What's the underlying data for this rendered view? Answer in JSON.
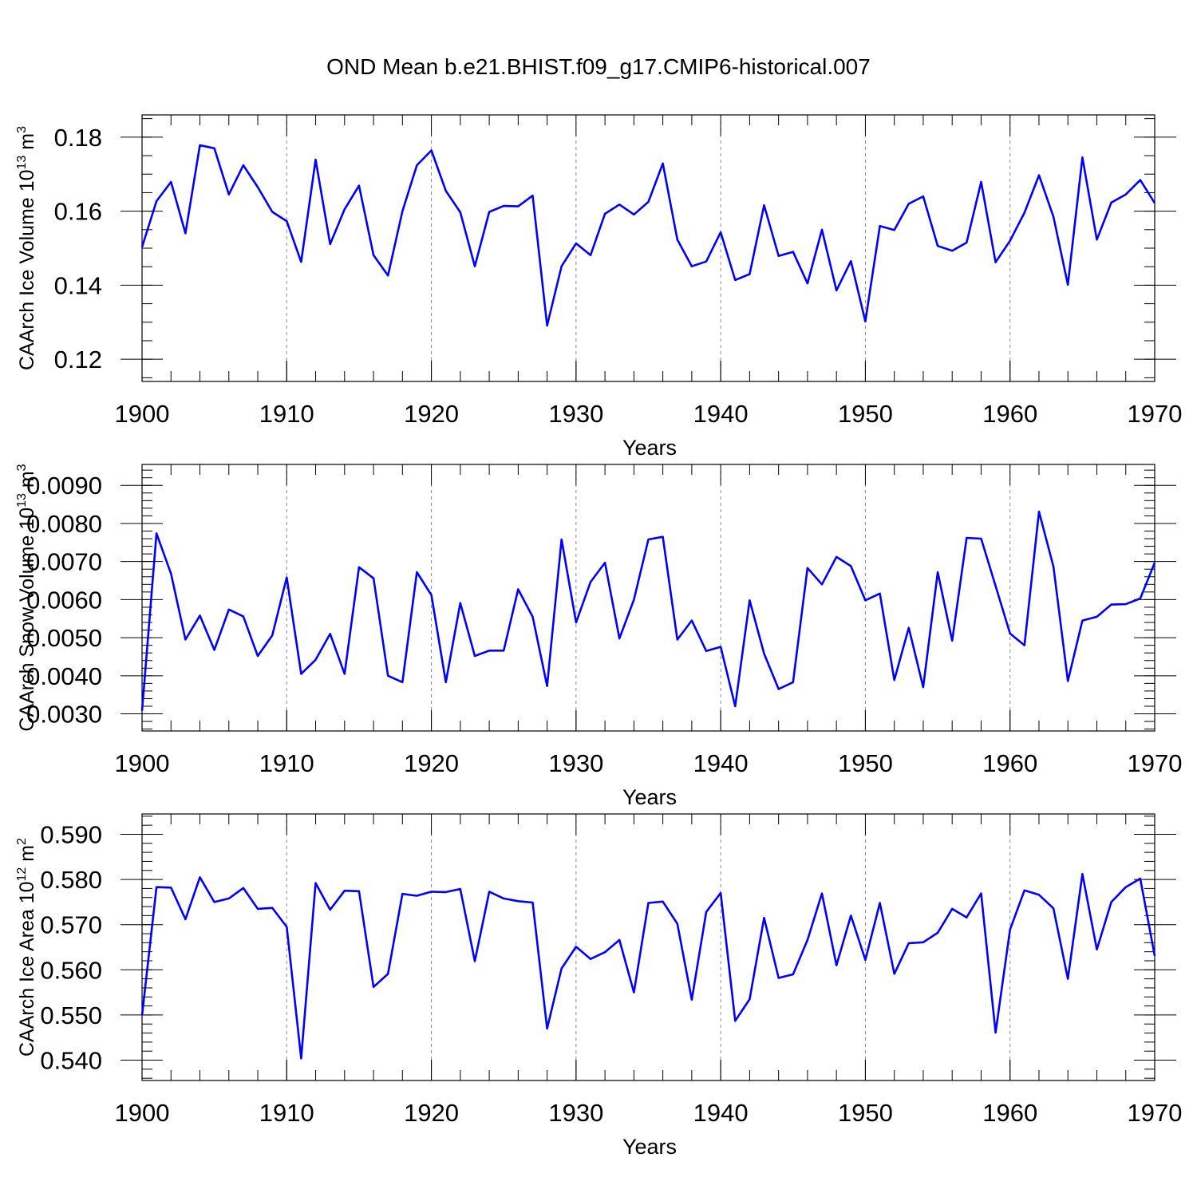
{
  "title": "OND Mean b.e21.BHIST.f09_g17.CMIP6-historical.007",
  "colors": {
    "line": "#0000ff",
    "axis": "#000000",
    "grid": "#888888"
  },
  "chart_data": [
    {
      "type": "line",
      "ylabel": "CAArch Ice Volume 10",
      "ylabel_exp": "13",
      "ylabel_unit": " m",
      "ylabel_unit_exp": "3",
      "xlabel": "Years",
      "xlim": [
        1900,
        1970
      ],
      "ylim": [
        0.114,
        0.186
      ],
      "yticks": [
        0.12,
        0.14,
        0.16,
        0.18
      ],
      "ytick_labels": [
        "0.12",
        "0.14",
        "0.16",
        "0.18"
      ],
      "yminor_step": 0.005,
      "xticks": [
        1900,
        1910,
        1920,
        1930,
        1940,
        1950,
        1960,
        1970
      ],
      "xtick_labels": [
        "1900",
        "1910",
        "1920",
        "1930",
        "1940",
        "1950",
        "1960",
        "1970"
      ],
      "grid": "vertical dashed at decades",
      "x": [
        1900,
        1901,
        1902,
        1903,
        1904,
        1905,
        1906,
        1907,
        1908,
        1909,
        1910,
        1911,
        1912,
        1913,
        1914,
        1915,
        1916,
        1917,
        1918,
        1919,
        1920,
        1921,
        1922,
        1923,
        1924,
        1925,
        1926,
        1927,
        1928,
        1929,
        1930,
        1931,
        1932,
        1933,
        1934,
        1935,
        1936,
        1937,
        1938,
        1939,
        1940,
        1941,
        1942,
        1943,
        1944,
        1945,
        1946,
        1947,
        1948,
        1949,
        1950,
        1951,
        1952,
        1953,
        1954,
        1955,
        1956,
        1957,
        1958,
        1959,
        1960,
        1961,
        1962,
        1963,
        1964,
        1965,
        1966,
        1967,
        1968,
        1969,
        1970
      ],
      "values": [
        0.1503,
        0.1627,
        0.1679,
        0.154,
        0.1778,
        0.177,
        0.1645,
        0.1724,
        0.1665,
        0.1598,
        0.1573,
        0.1463,
        0.1739,
        0.1511,
        0.1605,
        0.1669,
        0.1481,
        0.1426,
        0.16,
        0.1724,
        0.1764,
        0.1655,
        0.1597,
        0.1451,
        0.1598,
        0.1614,
        0.1613,
        0.1642,
        0.1291,
        0.1451,
        0.1513,
        0.1481,
        0.1593,
        0.1618,
        0.1591,
        0.1625,
        0.1729,
        0.1523,
        0.1451,
        0.1464,
        0.1543,
        0.1414,
        0.143,
        0.1616,
        0.1479,
        0.149,
        0.1405,
        0.155,
        0.1386,
        0.1465,
        0.1302,
        0.156,
        0.1549,
        0.162,
        0.164,
        0.1506,
        0.1493,
        0.1515,
        0.1679,
        0.1462,
        0.152,
        0.1596,
        0.1697,
        0.1585,
        0.1401,
        0.1745,
        0.1523,
        0.1623,
        0.1645,
        0.1684,
        0.1622
      ]
    },
    {
      "type": "line",
      "ylabel": "CAArch Snow Volume 10",
      "ylabel_exp": "13",
      "ylabel_unit": " m",
      "ylabel_unit_exp": "3",
      "xlabel": "Years",
      "xlim": [
        1900,
        1970
      ],
      "ylim": [
        0.00255,
        0.00955
      ],
      "yticks": [
        0.003,
        0.004,
        0.005,
        0.006,
        0.007,
        0.008,
        0.009
      ],
      "ytick_labels": [
        "0.0030",
        "0.0040",
        "0.0050",
        "0.0060",
        "0.0070",
        "0.0080",
        "0.0090"
      ],
      "yminor_step": 0.0002,
      "xticks": [
        1900,
        1910,
        1920,
        1930,
        1940,
        1950,
        1960,
        1970
      ],
      "xtick_labels": [
        "1900",
        "1910",
        "1920",
        "1930",
        "1940",
        "1950",
        "1960",
        "1970"
      ],
      "grid": "vertical dashed at decades",
      "x": [
        1900,
        1901,
        1902,
        1903,
        1904,
        1905,
        1906,
        1907,
        1908,
        1909,
        1910,
        1911,
        1912,
        1913,
        1914,
        1915,
        1916,
        1917,
        1918,
        1919,
        1920,
        1921,
        1922,
        1923,
        1924,
        1925,
        1926,
        1927,
        1928,
        1929,
        1930,
        1931,
        1932,
        1933,
        1934,
        1935,
        1936,
        1937,
        1938,
        1939,
        1940,
        1941,
        1942,
        1943,
        1944,
        1945,
        1946,
        1947,
        1948,
        1949,
        1950,
        1951,
        1952,
        1953,
        1954,
        1955,
        1956,
        1957,
        1958,
        1959,
        1960,
        1961,
        1962,
        1963,
        1964,
        1965,
        1966,
        1967,
        1968,
        1969,
        1970
      ],
      "values": [
        0.00308,
        0.00774,
        0.00668,
        0.00495,
        0.00558,
        0.00468,
        0.00574,
        0.00556,
        0.00452,
        0.00506,
        0.00658,
        0.00405,
        0.00442,
        0.0051,
        0.00405,
        0.00685,
        0.00656,
        0.004,
        0.00383,
        0.00672,
        0.00612,
        0.00383,
        0.00591,
        0.00452,
        0.00466,
        0.00466,
        0.00627,
        0.00555,
        0.00373,
        0.00758,
        0.0054,
        0.00646,
        0.00697,
        0.00498,
        0.006,
        0.00758,
        0.00765,
        0.00495,
        0.00545,
        0.00465,
        0.00476,
        0.0032,
        0.00598,
        0.00458,
        0.00365,
        0.00383,
        0.00683,
        0.0064,
        0.00712,
        0.00688,
        0.00598,
        0.00616,
        0.00389,
        0.00526,
        0.0037,
        0.00672,
        0.00492,
        0.00762,
        0.0076,
        0.00636,
        0.00511,
        0.0048,
        0.00831,
        0.00687,
        0.00386,
        0.00545,
        0.00555,
        0.00587,
        0.00588,
        0.00603,
        0.00697
      ]
    },
    {
      "type": "line",
      "ylabel": "CAArch Ice Area 10",
      "ylabel_exp": "12",
      "ylabel_unit": " m",
      "ylabel_unit_exp": "2",
      "xlabel": "Years",
      "xlim": [
        1900,
        1970
      ],
      "ylim": [
        0.5355,
        0.5945
      ],
      "yticks": [
        0.54,
        0.55,
        0.56,
        0.57,
        0.58,
        0.59
      ],
      "ytick_labels": [
        "0.540",
        "0.550",
        "0.560",
        "0.570",
        "0.580",
        "0.590"
      ],
      "yminor_step": 0.002,
      "xticks": [
        1900,
        1910,
        1920,
        1930,
        1940,
        1950,
        1960,
        1970
      ],
      "xtick_labels": [
        "1900",
        "1910",
        "1920",
        "1930",
        "1940",
        "1950",
        "1960",
        "1970"
      ],
      "grid": "vertical dashed at decades",
      "x": [
        1900,
        1901,
        1902,
        1903,
        1904,
        1905,
        1906,
        1907,
        1908,
        1909,
        1910,
        1911,
        1912,
        1913,
        1914,
        1915,
        1916,
        1917,
        1918,
        1919,
        1920,
        1921,
        1922,
        1923,
        1924,
        1925,
        1926,
        1927,
        1928,
        1929,
        1930,
        1931,
        1932,
        1933,
        1934,
        1935,
        1936,
        1937,
        1938,
        1939,
        1940,
        1941,
        1942,
        1943,
        1944,
        1945,
        1946,
        1947,
        1948,
        1949,
        1950,
        1951,
        1952,
        1953,
        1954,
        1955,
        1956,
        1957,
        1958,
        1959,
        1960,
        1961,
        1962,
        1963,
        1964,
        1965,
        1966,
        1967,
        1968,
        1969,
        1970
      ],
      "values": [
        0.5499,
        0.5783,
        0.5782,
        0.5712,
        0.5805,
        0.575,
        0.5758,
        0.5781,
        0.5735,
        0.5737,
        0.5695,
        0.5404,
        0.5792,
        0.5733,
        0.5775,
        0.5774,
        0.5562,
        0.5591,
        0.5768,
        0.5764,
        0.5773,
        0.5772,
        0.5779,
        0.5619,
        0.5773,
        0.5758,
        0.5752,
        0.5749,
        0.547,
        0.5603,
        0.5651,
        0.5624,
        0.5639,
        0.5666,
        0.555,
        0.5748,
        0.5751,
        0.5702,
        0.5534,
        0.5728,
        0.577,
        0.5487,
        0.5535,
        0.5715,
        0.5582,
        0.559,
        0.5666,
        0.5769,
        0.561,
        0.572,
        0.5622,
        0.5748,
        0.5591,
        0.5659,
        0.5661,
        0.5682,
        0.5735,
        0.5716,
        0.5769,
        0.5461,
        0.5689,
        0.5776,
        0.5766,
        0.5736,
        0.558,
        0.5812,
        0.5645,
        0.575,
        0.5783,
        0.5802,
        0.5631
      ]
    }
  ]
}
